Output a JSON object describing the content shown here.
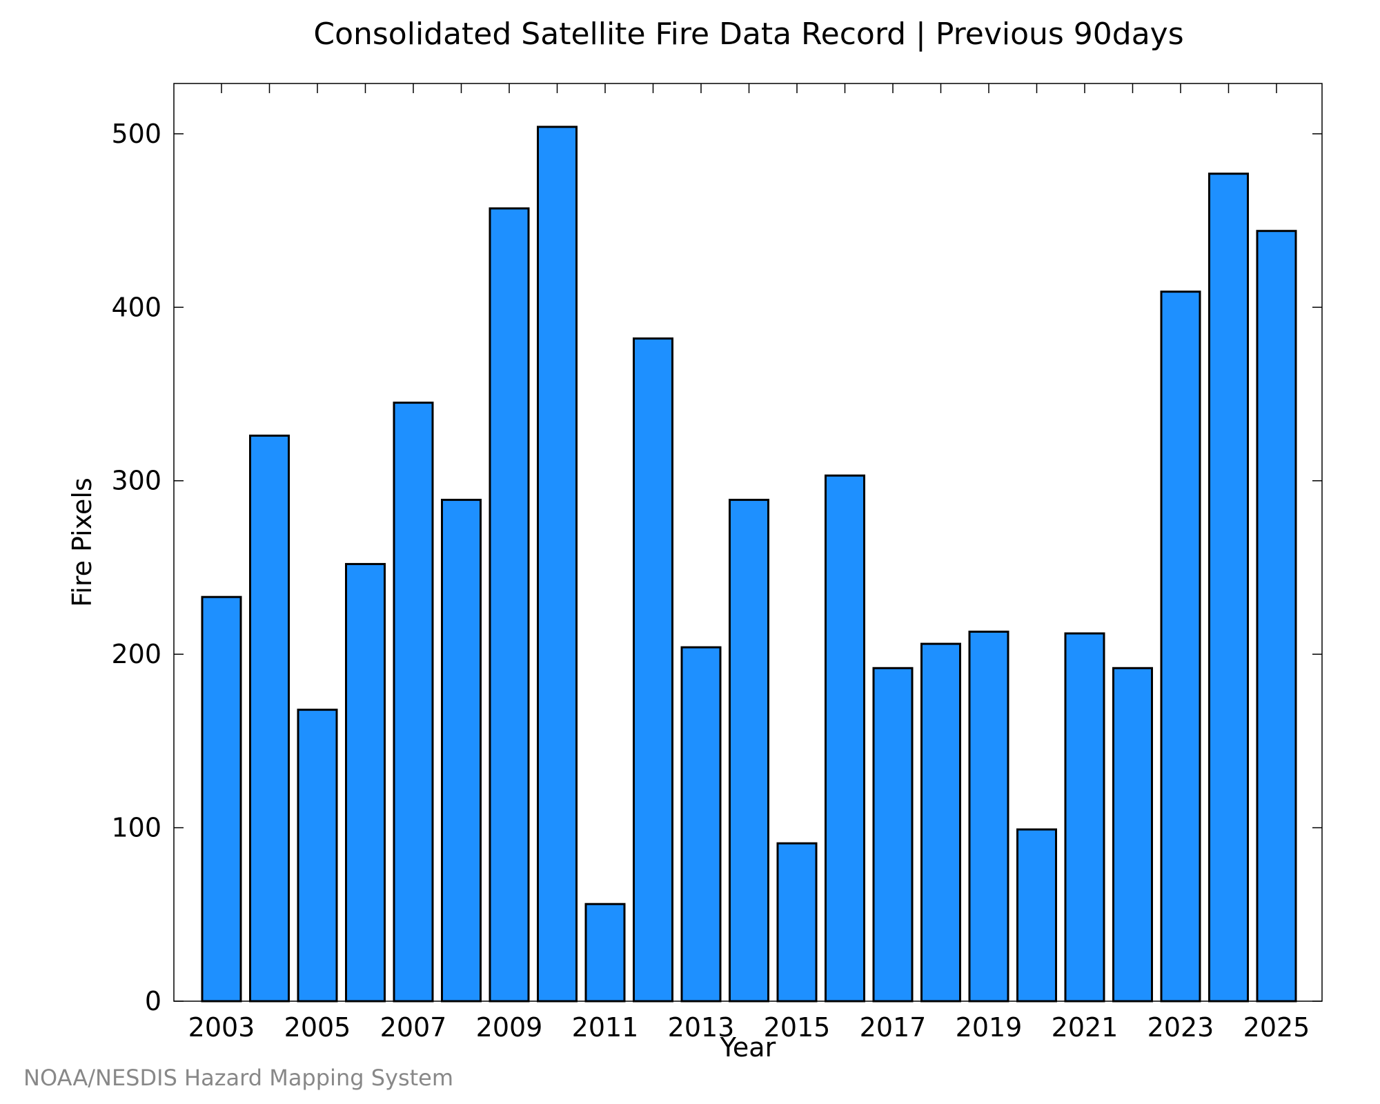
{
  "chart_data": {
    "type": "bar",
    "title": "Consolidated Satellite Fire Data Record | Previous 90days",
    "xlabel": "Year",
    "ylabel": "Fire Pixels",
    "categories": [
      "2003",
      "2004",
      "2005",
      "2006",
      "2007",
      "2008",
      "2009",
      "2010",
      "2011",
      "2012",
      "2013",
      "2014",
      "2015",
      "2016",
      "2017",
      "2018",
      "2019",
      "2020",
      "2021",
      "2022",
      "2023",
      "2024",
      "2025"
    ],
    "values": [
      233,
      326,
      168,
      252,
      345,
      289,
      457,
      504,
      56,
      382,
      204,
      289,
      91,
      303,
      192,
      206,
      213,
      99,
      212,
      192,
      409,
      477,
      444
    ],
    "x_tick_labels": [
      "2003",
      "2005",
      "2007",
      "2009",
      "2011",
      "2013",
      "2015",
      "2017",
      "2019",
      "2021",
      "2023",
      "2025"
    ],
    "y_ticks": [
      0,
      100,
      200,
      300,
      400,
      500
    ],
    "ylim": [
      0,
      529
    ],
    "bar_color": "#1e90ff",
    "grid": false,
    "legend": "none"
  },
  "footer": {
    "credit": "NOAA/NESDIS Hazard Mapping System"
  }
}
